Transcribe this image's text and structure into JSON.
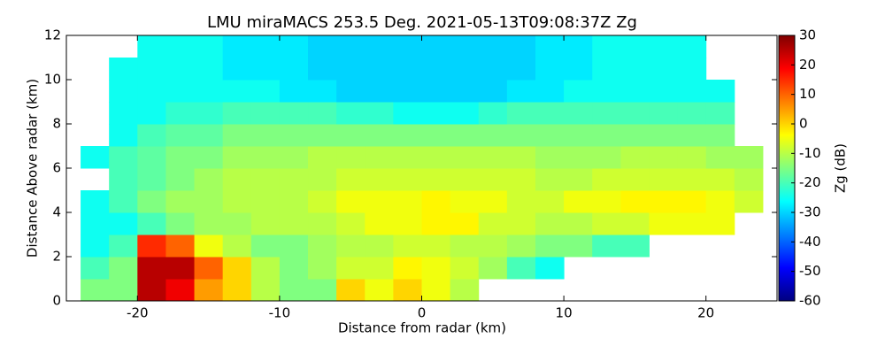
{
  "chart_data": {
    "type": "heatmap",
    "title": "LMU miraMACS 253.5 Deg. 2021-05-13T09:08:37Z  Zg",
    "x_label": "Distance from radar (km)",
    "y_label": "Distance Above radar  (km)",
    "colorbar_label": "Zg (dB)",
    "colormap": "jet",
    "xlim": [
      -25,
      25
    ],
    "ylim": [
      0,
      12
    ],
    "xticks": [
      -20,
      -10,
      0,
      10,
      20
    ],
    "yticks": [
      0,
      2,
      4,
      6,
      8,
      10,
      12
    ],
    "zlim": [
      -60,
      30
    ],
    "zticks": [
      -60,
      -50,
      -40,
      -30,
      -20,
      -10,
      0,
      10,
      20,
      30
    ],
    "x_edges": [
      -24,
      -22,
      -20,
      -18,
      -16,
      -14,
      -12,
      -10,
      -8,
      -6,
      -4,
      -2,
      0,
      2,
      4,
      6,
      8,
      10,
      12,
      14,
      16,
      18,
      20,
      22,
      24
    ],
    "y_edges": [
      0,
      1,
      2,
      3,
      4,
      5,
      6,
      7,
      8,
      9,
      10,
      11,
      12
    ],
    "z": [
      [
        -15,
        -15,
        25,
        20,
        5,
        0,
        -10,
        -15,
        -15,
        0,
        -5,
        0,
        -5,
        -10,
        null,
        null,
        null,
        null,
        null,
        null,
        null,
        null,
        null,
        null
      ],
      [
        -20,
        -15,
        25,
        25,
        10,
        0,
        -10,
        -15,
        -12,
        -8,
        -8,
        -3,
        -5,
        -8,
        -12,
        -20,
        -25,
        null,
        null,
        null,
        null,
        null,
        null,
        null
      ],
      [
        -25,
        -20,
        15,
        10,
        -5,
        -10,
        -15,
        -15,
        -12,
        -10,
        -10,
        -8,
        -8,
        -10,
        -10,
        -12,
        -15,
        -15,
        -20,
        -20,
        null,
        null,
        null,
        null
      ],
      [
        -25,
        -25,
        -20,
        -15,
        -12,
        -12,
        -10,
        -10,
        -10,
        -8,
        -5,
        -5,
        -3,
        -3,
        -8,
        -8,
        -10,
        -10,
        -8,
        -8,
        -5,
        -5,
        -5,
        null
      ],
      [
        -25,
        -20,
        -15,
        -12,
        -12,
        -10,
        -10,
        -10,
        -8,
        -5,
        -5,
        -5,
        -3,
        -5,
        -5,
        -8,
        -8,
        -5,
        -5,
        -3,
        -3,
        -3,
        -5,
        -8
      ],
      [
        null,
        -20,
        -18,
        -15,
        -12,
        -10,
        -10,
        -10,
        -10,
        -8,
        -8,
        -8,
        -8,
        -8,
        -8,
        -8,
        -10,
        -10,
        -8,
        -8,
        -8,
        -8,
        -8,
        -10
      ],
      [
        -25,
        -20,
        -18,
        -15,
        -15,
        -12,
        -12,
        -12,
        -10,
        -10,
        -10,
        -10,
        -10,
        -10,
        -10,
        -10,
        -12,
        -12,
        -12,
        -10,
        -10,
        -10,
        -12,
        -12
      ],
      [
        null,
        -25,
        -20,
        -18,
        -18,
        -15,
        -15,
        -15,
        -15,
        -15,
        -15,
        -15,
        -15,
        -15,
        -15,
        -15,
        -15,
        -15,
        -15,
        -15,
        -15,
        -15,
        -15,
        null
      ],
      [
        null,
        -25,
        -25,
        -22,
        -22,
        -20,
        -20,
        -20,
        -20,
        -22,
        -22,
        -25,
        -25,
        -25,
        -22,
        -20,
        -20,
        -20,
        -20,
        -20,
        -20,
        -20,
        -20,
        null
      ],
      [
        null,
        -25,
        -25,
        -25,
        -25,
        -25,
        -25,
        -28,
        -28,
        -30,
        -30,
        -30,
        -30,
        -30,
        -30,
        -28,
        -28,
        -25,
        -25,
        -25,
        -25,
        -25,
        -25,
        null
      ],
      [
        null,
        -25,
        -25,
        -25,
        -25,
        -28,
        -28,
        -28,
        -30,
        -30,
        -30,
        -30,
        -30,
        -30,
        -30,
        -30,
        -28,
        -28,
        -25,
        -25,
        -25,
        -25,
        null,
        null
      ],
      [
        null,
        null,
        -25,
        -25,
        -25,
        -28,
        -28,
        -28,
        -30,
        -30,
        -30,
        -30,
        -30,
        -30,
        -30,
        -30,
        -28,
        -28,
        -25,
        -25,
        -25,
        -25,
        null,
        null
      ]
    ]
  }
}
